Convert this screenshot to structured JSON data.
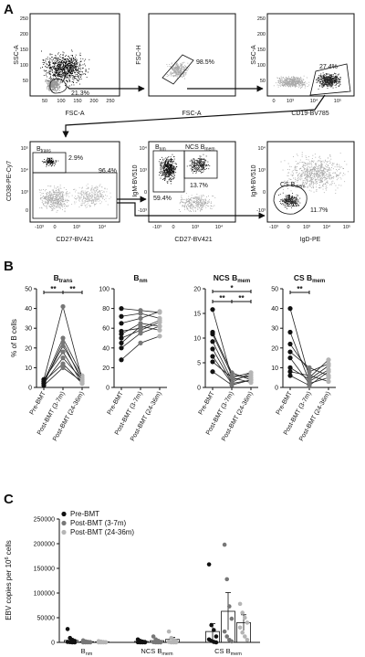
{
  "panel_labels": {
    "a": "A",
    "b": "B",
    "c": "C"
  },
  "flow": {
    "plots": [
      {
        "ylabel": "SSC-A",
        "xlabel": "FSC-A",
        "xticks": [
          "50",
          "100",
          "150",
          "200",
          "250"
        ],
        "yticks": [
          "50",
          "100",
          "150",
          "200",
          "250"
        ],
        "gates": [
          {
            "pct": "21.3%"
          }
        ]
      },
      {
        "ylabel": "FSC-H",
        "xlabel": "FSC-A",
        "gates": [
          {
            "pct": "98.5%"
          }
        ]
      },
      {
        "ylabel": "SSC-A",
        "xlabel": "CD19-BV785",
        "xticks": [
          "0",
          "10³",
          "10⁴",
          "10⁵"
        ],
        "yticks": [
          "50",
          "100",
          "150",
          "200",
          "250"
        ],
        "gates": [
          {
            "pct": "27.4%"
          }
        ]
      },
      {
        "ylabel": "CD38-PE-Cy7",
        "xlabel": "CD27-BV421",
        "xticks": [
          "-10³",
          "0",
          "10³",
          "10⁴"
        ],
        "yticks": [
          "0",
          "10³",
          "10⁴",
          "10⁵"
        ],
        "gates": [
          {
            "name": "Btrans",
            "name_main": "B",
            "name_sub": "trans",
            "pct": "2.9%"
          },
          {
            "pct": "96.4%"
          }
        ]
      },
      {
        "ylabel": "IgM-BV510",
        "xlabel": "CD27-BV421",
        "xticks": [
          "-10³",
          "0",
          "10³",
          "10⁴"
        ],
        "yticks": [
          "-10³",
          "0",
          "10³",
          "10⁴"
        ],
        "gates": [
          {
            "name": "Bnm",
            "name_main": "B",
            "name_sub": "nm",
            "pct": "59.4%"
          },
          {
            "name": "NCS Bmem",
            "name_main": "NCS B",
            "name_sub": "mem",
            "pct": "13.7%"
          }
        ]
      },
      {
        "ylabel": "IgM-BV510",
        "xlabel": "IgD-PE",
        "xticks": [
          "-10³",
          "0",
          "10³",
          "10⁴",
          "10⁵"
        ],
        "yticks": [
          "-10³",
          "0",
          "10³",
          "10⁴"
        ],
        "gates": [
          {
            "name": "CS Bmem",
            "name_main": "CS B",
            "name_sub": "mem",
            "pct": "11.7%"
          }
        ]
      }
    ]
  },
  "chart_data": [
    {
      "type": "scatter",
      "title": "Btrans",
      "title_main": "B",
      "title_sub": "trans",
      "ylabel": "% of B cells",
      "categories": [
        "Pre-BMT",
        "Post-BMT (3-7m)",
        "Post-BMT (24-36m)"
      ],
      "ylim": [
        0,
        50
      ],
      "yticks": [
        0,
        10,
        20,
        30,
        40,
        50
      ],
      "subjects": [
        [
          4,
          41,
          4
        ],
        [
          3,
          25,
          6
        ],
        [
          2,
          23,
          3
        ],
        [
          3,
          21,
          5
        ],
        [
          4,
          18,
          2
        ],
        [
          2,
          15,
          4
        ],
        [
          3,
          12,
          2
        ],
        [
          1,
          10,
          3
        ]
      ],
      "significance": [
        "**",
        "**"
      ]
    },
    {
      "type": "scatter",
      "title": "Bnm",
      "title_main": "B",
      "title_sub": "nm",
      "categories": [
        "Pre-BMT",
        "Post-BMT (3-7m)",
        "Post-BMT (24-36m)"
      ],
      "ylim": [
        0,
        100
      ],
      "yticks": [
        0,
        20,
        40,
        60,
        80,
        100
      ],
      "subjects": [
        [
          80,
          78,
          76
        ],
        [
          72,
          75,
          70
        ],
        [
          65,
          70,
          77
        ],
        [
          57,
          60,
          68
        ],
        [
          54,
          65,
          62
        ],
        [
          50,
          58,
          66
        ],
        [
          45,
          62,
          58
        ],
        [
          40,
          55,
          62
        ],
        [
          28,
          45,
          52
        ]
      ],
      "significance": []
    },
    {
      "type": "scatter",
      "title": "NCS Bmem",
      "title_main": "NCS B",
      "title_sub": "mem",
      "categories": [
        "Pre-BMT",
        "Post-BMT (3-7m)",
        "Post-BMT (24-36m)"
      ],
      "ylim": [
        0,
        20
      ],
      "yticks": [
        0,
        5,
        10,
        15,
        20
      ],
      "subjects": [
        [
          15.8,
          2,
          3
        ],
        [
          11.2,
          3,
          1.5
        ],
        [
          10.8,
          2.5,
          2
        ],
        [
          9.3,
          1.5,
          2.5
        ],
        [
          7.8,
          1,
          3
        ],
        [
          6.3,
          0.8,
          1.5
        ],
        [
          5.2,
          2,
          1
        ],
        [
          3.2,
          0.5,
          1.5
        ]
      ],
      "significance": [
        "**",
        "**",
        "*"
      ]
    },
    {
      "type": "scatter",
      "title": "CS Bmem",
      "title_main": "CS B",
      "title_sub": "mem",
      "categories": [
        "Pre-BMT",
        "Post-BMT (3-7m)",
        "Post-BMT (24-36m)"
      ],
      "ylim": [
        0,
        50
      ],
      "yticks": [
        0,
        10,
        20,
        30,
        40,
        50
      ],
      "subjects": [
        [
          40,
          5,
          14
        ],
        [
          28,
          3,
          9
        ],
        [
          22,
          8,
          12
        ],
        [
          18,
          10,
          6
        ],
        [
          15,
          2,
          5
        ],
        [
          10,
          4,
          11
        ],
        [
          8,
          6,
          3
        ],
        [
          6,
          1,
          8
        ]
      ],
      "significance": [
        "**"
      ]
    },
    {
      "type": "bar",
      "ylabel": "EBV copies per 10⁶ cells",
      "ylabel_main": "EBV copies per 10",
      "ylabel_sup": "6",
      "ylabel_tail": " cells",
      "categories": [
        "Bnm",
        "NCS Bmem",
        "CS Bmem"
      ],
      "category_labels": [
        {
          "main": "B",
          "sub": "nm"
        },
        {
          "main": "NCS B",
          "sub": "mem"
        },
        {
          "main": "CS B",
          "sub": "mem"
        }
      ],
      "ylim": [
        0,
        250000
      ],
      "yticks": [
        "0",
        "50000",
        "100000",
        "150000",
        "200000",
        "250000"
      ],
      "series": [
        {
          "name": "Pre-BMT",
          "color": "#111111",
          "values": [
            4000,
            2000,
            22000
          ],
          "errors": [
            3000,
            1500,
            16000
          ],
          "points": [
            [
              27000,
              9000,
              5000,
              3000,
              1000,
              500,
              0,
              0
            ],
            [
              6000,
              3000,
              1500,
              800,
              300,
              0,
              0,
              0
            ],
            [
              158000,
              35000,
              25000,
              12000,
              6000,
              3000,
              1000,
              0
            ]
          ]
        },
        {
          "name": "Post-BMT (3-7m)",
          "color": "#777777",
          "values": [
            1500,
            3500,
            63000
          ],
          "errors": [
            1200,
            2500,
            38000
          ],
          "points": [
            [
              4000,
              2000,
              1000,
              500,
              0,
              0,
              0,
              0
            ],
            [
              12000,
              6000,
              3000,
              1000,
              500,
              0,
              0,
              0
            ],
            [
              198000,
              128000,
              73000,
              48000,
              22000,
              12000,
              5000,
              2000
            ]
          ]
        },
        {
          "name": "Post-BMT (24-36m)",
          "color": "#b5b5b5",
          "values": [
            1000,
            6000,
            40000
          ],
          "errors": [
            800,
            4000,
            16000
          ],
          "points": [
            [
              2500,
              1500,
              800,
              400,
              0,
              0,
              0,
              0
            ],
            [
              22000,
              9000,
              5000,
              2000,
              1000,
              0,
              0,
              0
            ],
            [
              78000,
              60000,
              50000,
              40000,
              30000,
              20000,
              12000,
              5000
            ]
          ]
        }
      ]
    }
  ]
}
